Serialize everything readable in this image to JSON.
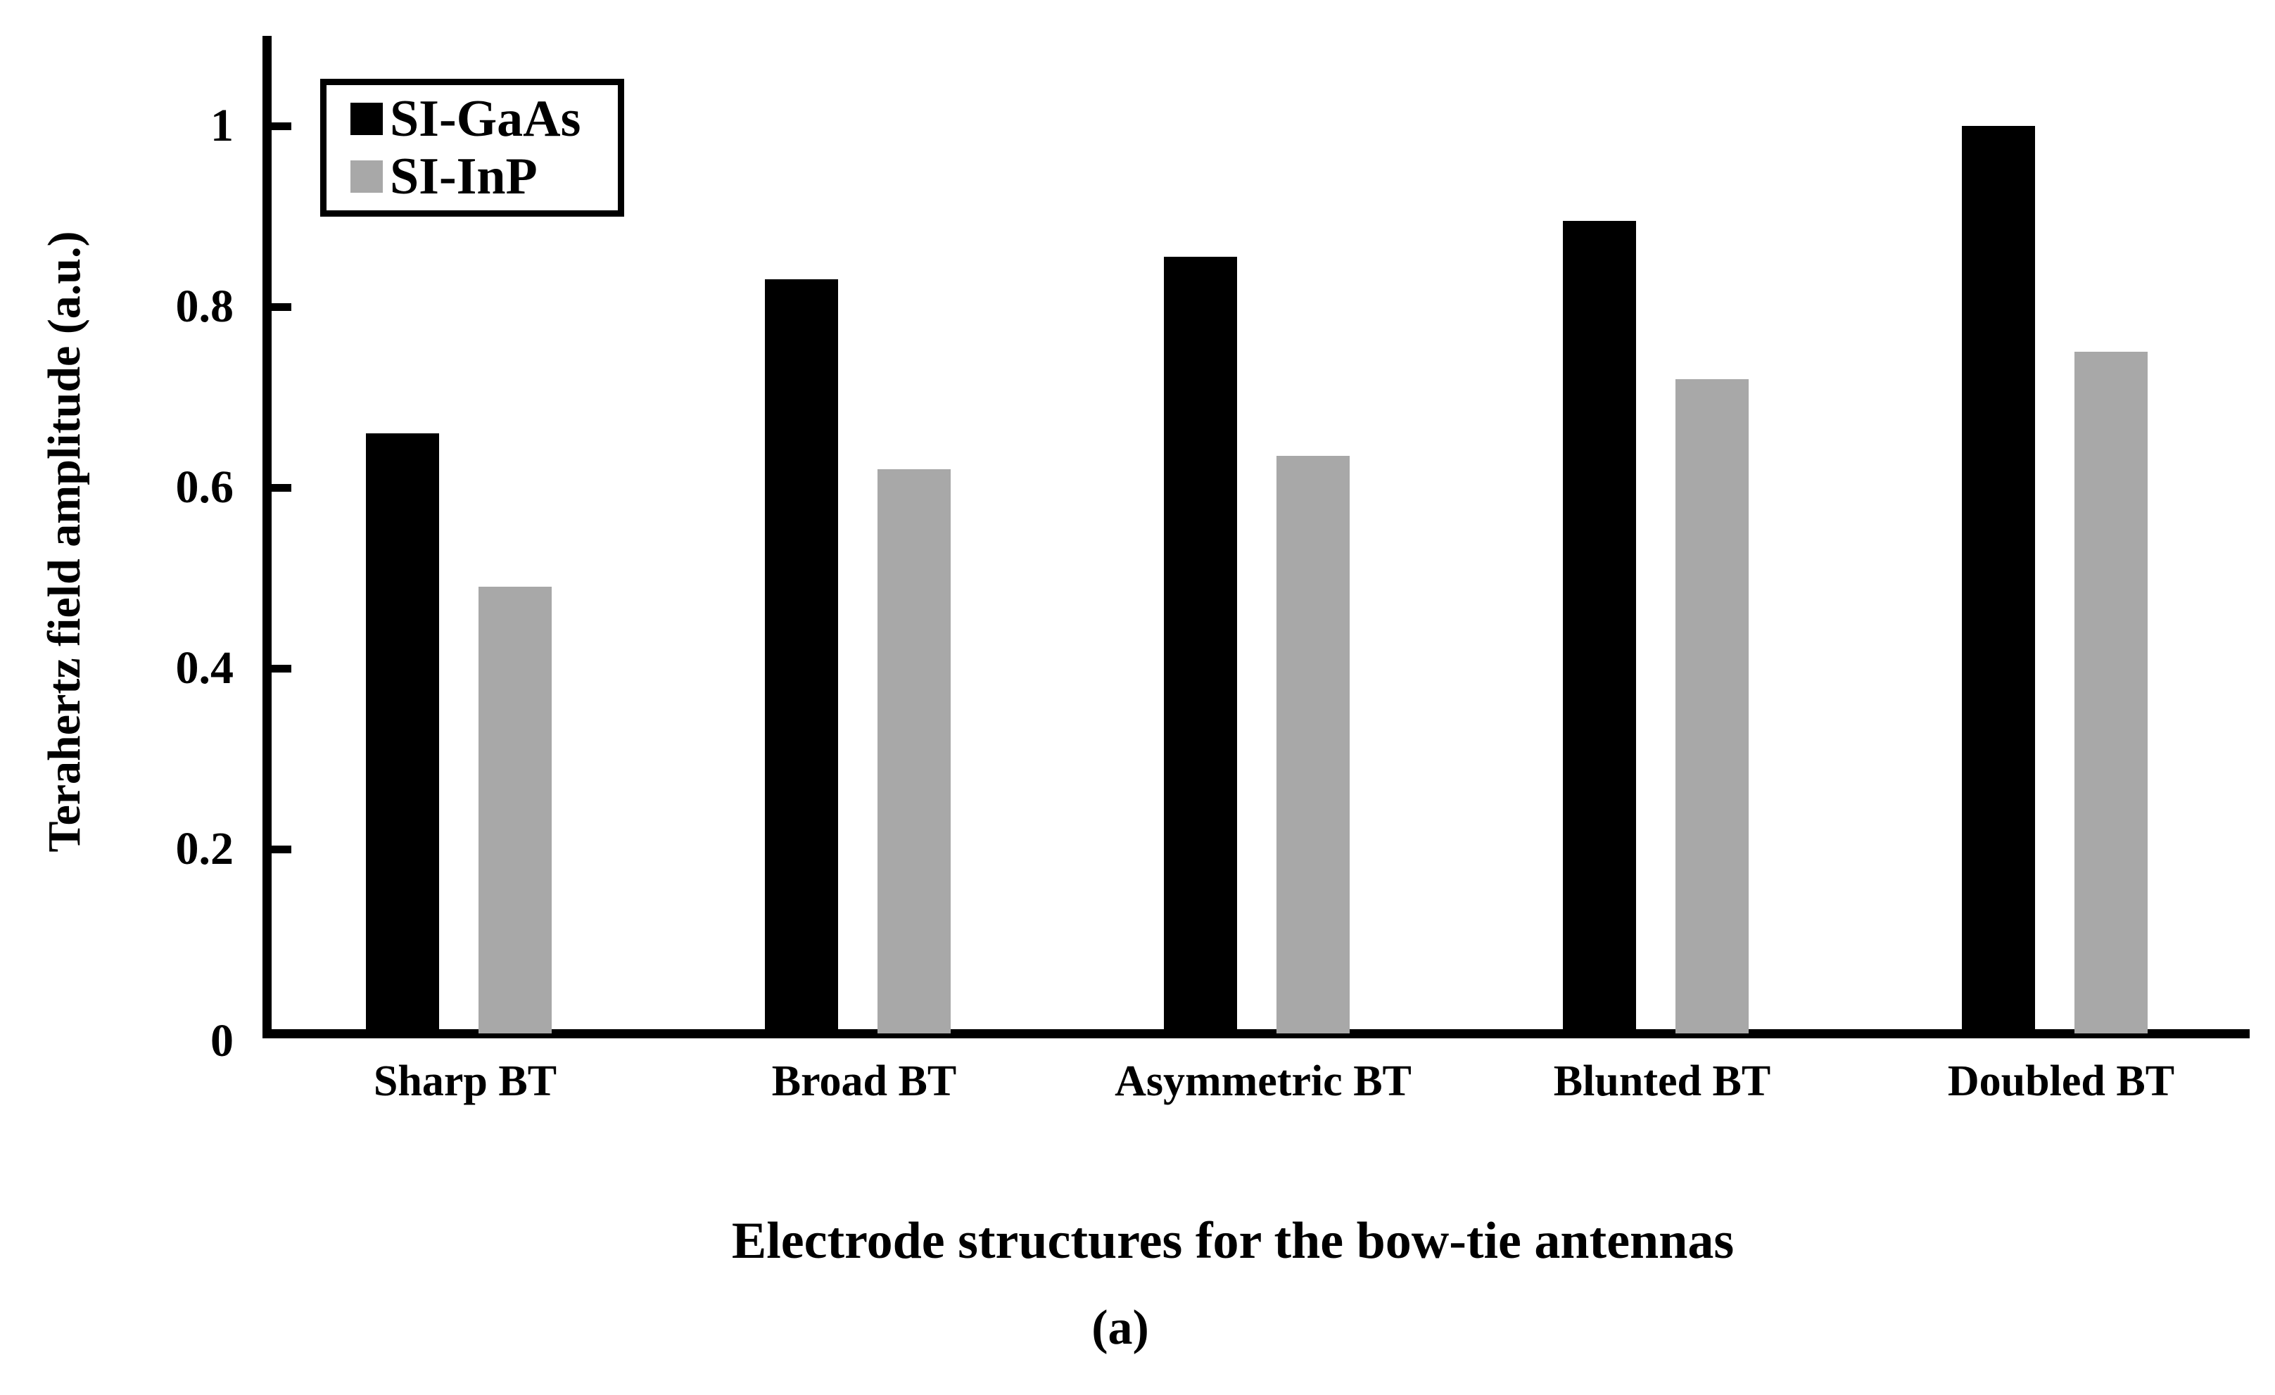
{
  "figure": {
    "caption": "(a)"
  },
  "chart_data": {
    "type": "bar",
    "title": "",
    "categories": [
      "Sharp BT",
      "Broad BT",
      "Asymmetric BT",
      "Blunted BT",
      "Doubled BT"
    ],
    "series": [
      {
        "name": "SI-GaAs",
        "color": "#000000",
        "values": [
          0.66,
          0.83,
          0.855,
          0.895,
          1.0
        ]
      },
      {
        "name": "SI-InP",
        "color": "#a8a8a8",
        "values": [
          0.49,
          0.62,
          0.635,
          0.72,
          0.75
        ]
      }
    ],
    "xlabel": "Electrode structures for the bow-tie antennas",
    "ylabel": "Terahertz field amplitude (a.u.)",
    "ylim": [
      0,
      1.09
    ],
    "yticks": [
      0,
      0.2,
      0.4,
      0.6,
      0.8,
      1
    ],
    "grid": false,
    "legend_position": "upper-left",
    "background": "#ffffff"
  }
}
